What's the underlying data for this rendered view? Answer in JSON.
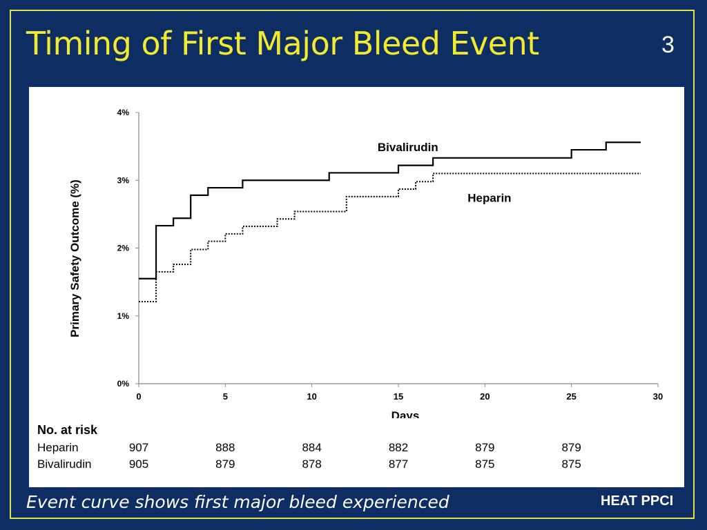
{
  "slide": {
    "title": "Timing of First Major Bleed Event",
    "number": "3",
    "caption": "Event curve shows first major bleed experienced",
    "brand": "HEAT PPCI",
    "colors": {
      "background": "#0d2d63",
      "title": "#f2ea2e",
      "border": "#e8e04a"
    }
  },
  "chart_data": {
    "type": "line",
    "title": "",
    "xlabel": "Days",
    "ylabel": "Primary Safety Outcome (%)",
    "xlim": [
      0,
      30
    ],
    "ylim": [
      0,
      4
    ],
    "x_ticks": [
      0,
      5,
      10,
      15,
      20,
      25,
      30
    ],
    "y_ticks": [
      "0%",
      "1%",
      "2%",
      "3%",
      "4%"
    ],
    "y_tick_values": [
      0,
      1,
      2,
      3,
      4
    ],
    "step": true,
    "series": [
      {
        "name": "Bivalirudin",
        "style": "solid",
        "points": [
          [
            0,
            1.55
          ],
          [
            1,
            2.33
          ],
          [
            2,
            2.44
          ],
          [
            3,
            2.78
          ],
          [
            4,
            2.89
          ],
          [
            6,
            3.0
          ],
          [
            11,
            3.11
          ],
          [
            15,
            3.22
          ],
          [
            17,
            3.33
          ],
          [
            25,
            3.45
          ],
          [
            27,
            3.56
          ],
          [
            29,
            3.56
          ]
        ]
      },
      {
        "name": "Heparin",
        "style": "dotted",
        "points": [
          [
            0,
            1.21
          ],
          [
            1,
            1.65
          ],
          [
            2,
            1.76
          ],
          [
            3,
            1.98
          ],
          [
            4,
            2.1
          ],
          [
            5,
            2.21
          ],
          [
            6,
            2.32
          ],
          [
            8,
            2.43
          ],
          [
            9,
            2.54
          ],
          [
            12,
            2.76
          ],
          [
            15,
            2.87
          ],
          [
            16,
            2.98
          ],
          [
            17,
            3.1
          ],
          [
            29,
            3.1
          ]
        ]
      }
    ],
    "series_labels": [
      {
        "text": "Bivalirudin",
        "x": 13.8,
        "y": 3.43
      },
      {
        "text": "Heparin",
        "x": 19.0,
        "y": 2.68
      }
    ],
    "risk_table": {
      "title": "No. at risk",
      "days": [
        0,
        5,
        10,
        15,
        20,
        25
      ],
      "rows": [
        {
          "label": "Heparin",
          "values": [
            "907",
            "888",
            "884",
            "882",
            "879",
            "879"
          ]
        },
        {
          "label": "Bivalirudin",
          "values": [
            "905",
            "879",
            "878",
            "877",
            "875",
            "875"
          ]
        }
      ]
    }
  }
}
